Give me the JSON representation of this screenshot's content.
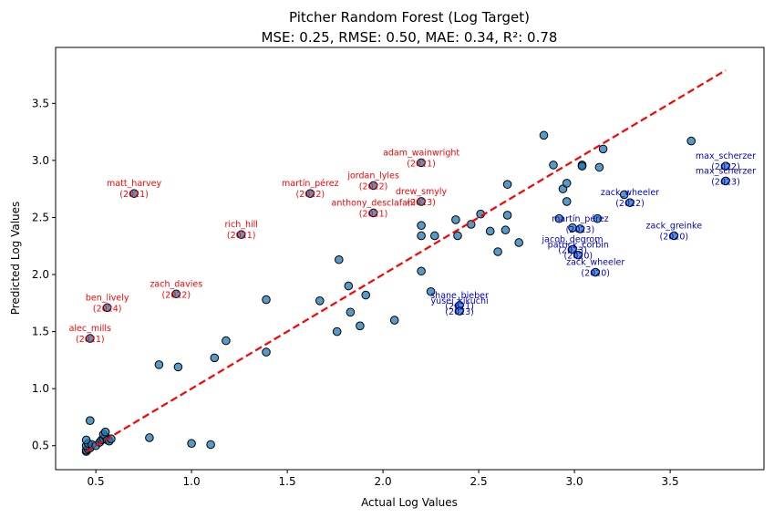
{
  "chart_data": {
    "type": "scatter",
    "title_line1": "Pitcher Random Forest (Log Target)",
    "title_line2": "MSE: 0.25, RMSE: 0.50, MAE: 0.34, R²: 0.78",
    "xlabel": "Actual Log Values",
    "ylabel": "Predicted Log Values",
    "xlim": [
      0.29,
      3.99
    ],
    "ylim": [
      0.29,
      3.99
    ],
    "xticks": [
      0.5,
      1.0,
      1.5,
      2.0,
      2.5,
      3.0,
      3.5
    ],
    "yticks": [
      0.5,
      1.0,
      1.5,
      2.0,
      2.5,
      3.0,
      3.5
    ],
    "grid": false,
    "point_color": "#1f77b4",
    "reference_line": {
      "x": [
        0.45,
        3.79
      ],
      "y": [
        0.45,
        3.79
      ],
      "color": "#ff0000",
      "style": "dashed"
    },
    "points": [
      [
        0.45,
        0.45
      ],
      [
        0.45,
        0.46
      ],
      [
        0.46,
        0.47
      ],
      [
        0.47,
        0.48
      ],
      [
        0.45,
        0.5
      ],
      [
        0.46,
        0.52
      ],
      [
        0.45,
        0.55
      ],
      [
        0.48,
        0.51
      ],
      [
        0.5,
        0.5
      ],
      [
        0.52,
        0.53
      ],
      [
        0.53,
        0.55
      ],
      [
        0.54,
        0.56
      ],
      [
        0.55,
        0.58
      ],
      [
        0.54,
        0.6
      ],
      [
        0.55,
        0.62
      ],
      [
        0.56,
        0.55
      ],
      [
        0.57,
        0.54
      ],
      [
        0.58,
        0.56
      ],
      [
        0.47,
        0.72
      ],
      [
        0.47,
        1.44
      ],
      [
        0.56,
        1.71
      ],
      [
        0.7,
        2.71
      ],
      [
        0.78,
        0.57
      ],
      [
        0.83,
        1.21
      ],
      [
        0.92,
        1.83
      ],
      [
        0.93,
        1.19
      ],
      [
        1.0,
        0.52
      ],
      [
        1.1,
        0.51
      ],
      [
        1.12,
        1.27
      ],
      [
        1.18,
        1.42
      ],
      [
        1.26,
        2.35
      ],
      [
        1.39,
        1.78
      ],
      [
        1.39,
        1.32
      ],
      [
        1.62,
        2.71
      ],
      [
        1.67,
        1.77
      ],
      [
        1.76,
        1.5
      ],
      [
        1.77,
        2.13
      ],
      [
        1.82,
        1.9
      ],
      [
        1.83,
        1.67
      ],
      [
        1.88,
        1.55
      ],
      [
        1.91,
        1.82
      ],
      [
        1.95,
        2.78
      ],
      [
        1.95,
        2.54
      ],
      [
        2.06,
        1.6
      ],
      [
        2.2,
        2.98
      ],
      [
        2.2,
        2.64
      ],
      [
        2.2,
        2.43
      ],
      [
        2.2,
        2.34
      ],
      [
        2.2,
        2.03
      ],
      [
        2.25,
        1.85
      ],
      [
        2.27,
        2.34
      ],
      [
        2.38,
        2.48
      ],
      [
        2.39,
        2.34
      ],
      [
        2.4,
        1.73
      ],
      [
        2.4,
        1.68
      ],
      [
        2.46,
        2.44
      ],
      [
        2.51,
        2.53
      ],
      [
        2.56,
        2.38
      ],
      [
        2.6,
        2.2
      ],
      [
        2.64,
        2.39
      ],
      [
        2.65,
        2.79
      ],
      [
        2.65,
        2.52
      ],
      [
        2.71,
        2.28
      ],
      [
        2.84,
        3.22
      ],
      [
        2.89,
        2.96
      ],
      [
        2.92,
        2.49
      ],
      [
        2.94,
        2.75
      ],
      [
        2.96,
        2.64
      ],
      [
        2.96,
        2.8
      ],
      [
        2.99,
        2.41
      ],
      [
        2.99,
        2.22
      ],
      [
        3.02,
        2.17
      ],
      [
        3.03,
        2.4
      ],
      [
        3.04,
        2.96
      ],
      [
        3.04,
        2.95
      ],
      [
        3.11,
        2.02
      ],
      [
        3.12,
        2.49
      ],
      [
        3.13,
        2.94
      ],
      [
        3.15,
        3.1
      ],
      [
        3.26,
        2.7
      ],
      [
        3.29,
        2.63
      ],
      [
        3.52,
        2.34
      ],
      [
        3.61,
        3.17
      ],
      [
        3.79,
        2.95
      ],
      [
        3.79,
        2.82
      ]
    ],
    "annotations": [
      {
        "label": "matt_harvey\n(2021)",
        "x": 0.7,
        "y": 2.71,
        "group": "over"
      },
      {
        "label": "rich_hill\n(2021)",
        "x": 1.26,
        "y": 2.35,
        "group": "over"
      },
      {
        "label": "martín_pérez\n(2022)",
        "x": 1.62,
        "y": 2.71,
        "group": "over"
      },
      {
        "label": "jordan_lyles\n(2022)",
        "x": 1.95,
        "y": 2.78,
        "group": "over"
      },
      {
        "label": "adam_wainwright\n(2021)",
        "x": 2.2,
        "y": 2.98,
        "group": "over"
      },
      {
        "label": "drew_smyly\n(2023)",
        "x": 2.2,
        "y": 2.64,
        "group": "over"
      },
      {
        "label": "anthony_desclafani\n(2021)",
        "x": 1.95,
        "y": 2.54,
        "group": "over"
      },
      {
        "label": "zach_davies\n(2022)",
        "x": 0.92,
        "y": 1.83,
        "group": "over"
      },
      {
        "label": "ben_lively\n(2024)",
        "x": 0.56,
        "y": 1.71,
        "group": "over"
      },
      {
        "label": "alec_mills\n(2021)",
        "x": 0.47,
        "y": 1.44,
        "group": "over"
      },
      {
        "label": "max_scherzer\n(2022)",
        "x": 3.79,
        "y": 2.95,
        "group": "under"
      },
      {
        "label": "max_scherzer\n(2023)",
        "x": 3.79,
        "y": 2.82,
        "group": "under"
      },
      {
        "label": "zack_wheeler\n(2022)",
        "x": 3.29,
        "y": 2.63,
        "group": "under"
      },
      {
        "label": "zack_greinke\n(2020)",
        "x": 3.52,
        "y": 2.34,
        "group": "under"
      },
      {
        "label": "martín_pérez\n(2023)",
        "x": 3.03,
        "y": 2.4,
        "group": "under"
      },
      {
        "label": "jacob_degrom\n(2023)",
        "x": 2.99,
        "y": 2.22,
        "group": "under"
      },
      {
        "label": "patrick_corbin\n(2020)",
        "x": 3.02,
        "y": 2.17,
        "group": "under"
      },
      {
        "label": "zack_wheeler\n(2020)",
        "x": 3.11,
        "y": 2.02,
        "group": "under"
      },
      {
        "label": "shane_bieber\n(2021)",
        "x": 2.4,
        "y": 1.73,
        "group": "under"
      },
      {
        "label": "yusei_kikuchi\n(2023)",
        "x": 2.4,
        "y": 1.68,
        "group": "under"
      }
    ],
    "annotation_colors": {
      "over": "#ff0000",
      "under": "#0000cd"
    }
  }
}
